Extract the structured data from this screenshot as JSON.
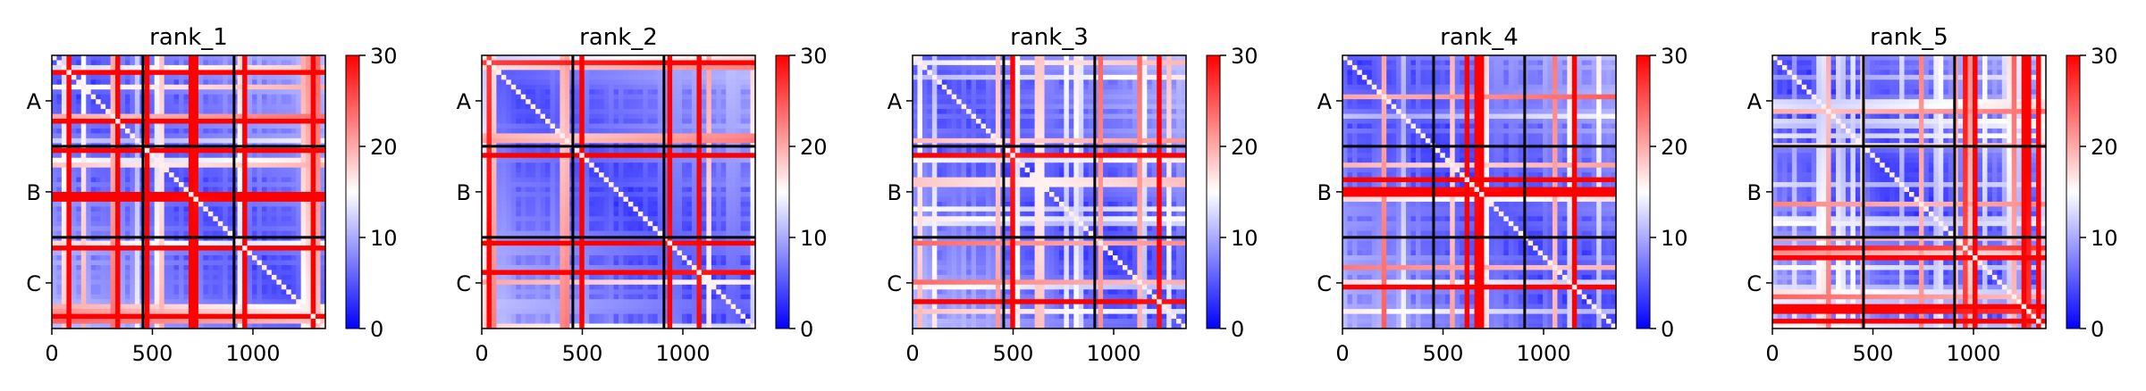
{
  "chart_data": {
    "type": "heatmap",
    "colormap": "bwr",
    "colorbar": {
      "min": 0,
      "max": 30,
      "ticks": [
        0,
        10,
        20,
        30
      ],
      "colors": [
        "#0000ff",
        "#ffffff",
        "#ff0000"
      ]
    },
    "xlim": [
      0,
      1360
    ],
    "xticks": [
      0,
      500,
      1000
    ],
    "chain_boundaries": [
      453,
      906
    ],
    "y_labels": [
      "A",
      "B",
      "C"
    ],
    "panels": [
      {
        "title": "rank_1"
      },
      {
        "title": "rank_2"
      },
      {
        "title": "rank_3"
      },
      {
        "title": "rank_4"
      },
      {
        "title": "rank_5"
      }
    ]
  }
}
